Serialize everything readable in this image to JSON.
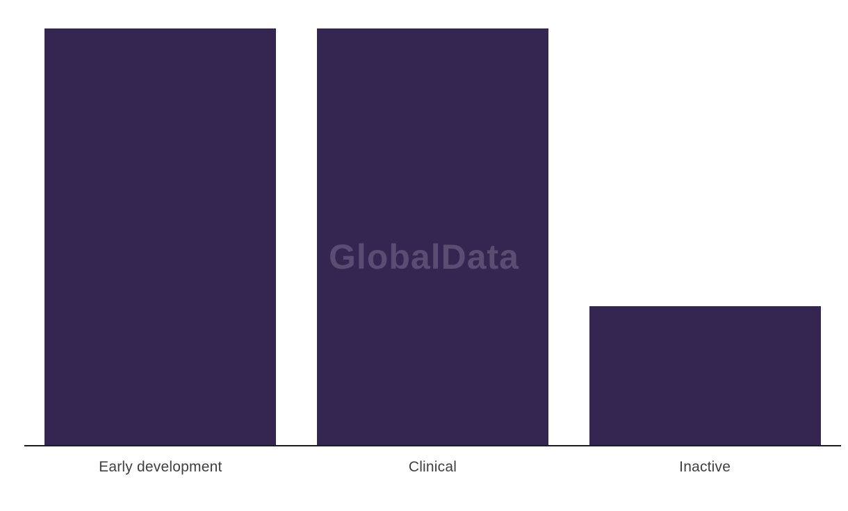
{
  "chart_data": {
    "type": "bar",
    "title": "",
    "xlabel": "",
    "ylabel": "",
    "categories": [
      "Early development",
      "Clinical",
      "Inactive"
    ],
    "values": [
      3,
      3,
      1
    ],
    "ylim": [
      0,
      3
    ],
    "grid": false,
    "legend": false,
    "y_axis_visible": false,
    "bar_color": "#342551",
    "axis_line_color": "#191930",
    "tick_label_color": "#3f3f3f"
  },
  "watermark": {
    "text": "GlobalData",
    "color": "#5b4c74"
  }
}
